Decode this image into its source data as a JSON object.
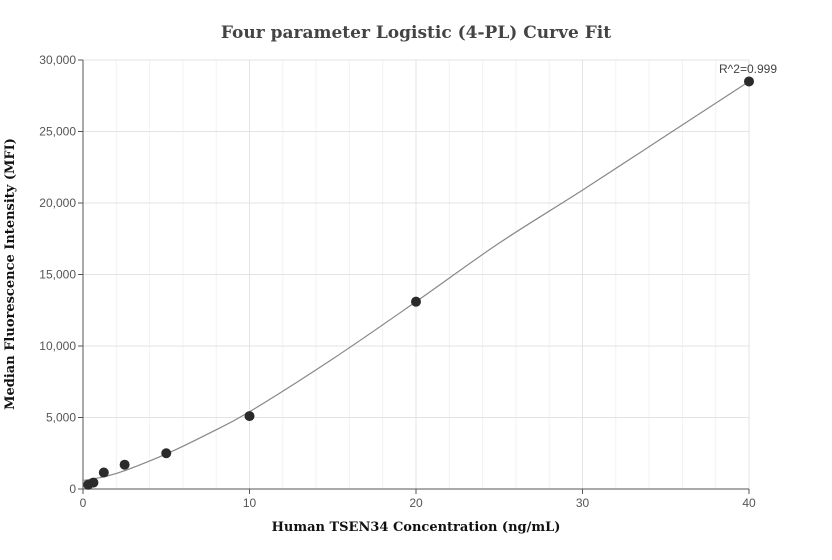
{
  "chart_data": {
    "type": "scatter",
    "title": "Four parameter Logistic (4-PL) Curve Fit",
    "xlabel": "Human TSEN34 Concentration (ng/mL)",
    "ylabel": "Median Fluorescence Intensity (MFI)",
    "xlim": [
      0,
      40
    ],
    "ylim": [
      0,
      30000
    ],
    "xticks": [
      0,
      10,
      20,
      30,
      40
    ],
    "xtick_labels": [
      "0",
      "10",
      "20",
      "30",
      "40"
    ],
    "yticks": [
      0,
      5000,
      10000,
      15000,
      20000,
      25000,
      30000
    ],
    "ytick_labels": [
      "0",
      "5,000",
      "10,000",
      "15,000",
      "20,000",
      "25,000",
      "30,000"
    ],
    "grid": true,
    "annotation": "R^2=0.999",
    "points": {
      "x": [
        0.3125,
        0.625,
        1.25,
        2.5,
        5,
        10,
        20,
        40
      ],
      "y": [
        300,
        450,
        1150,
        1700,
        2500,
        5100,
        13100,
        28500
      ]
    },
    "fit_curve": {
      "x": [
        0,
        0.3125,
        0.625,
        1.25,
        2.5,
        5,
        7.5,
        10,
        15,
        20,
        25,
        30,
        35,
        40
      ],
      "y": [
        600,
        650,
        720,
        850,
        1280,
        2450,
        3850,
        5400,
        9100,
        13100,
        17200,
        20900,
        24700,
        28500
      ]
    },
    "colors": {
      "points": "#2b2b2b",
      "fit_line": "#888888",
      "grid": "#e3e3e3"
    }
  }
}
